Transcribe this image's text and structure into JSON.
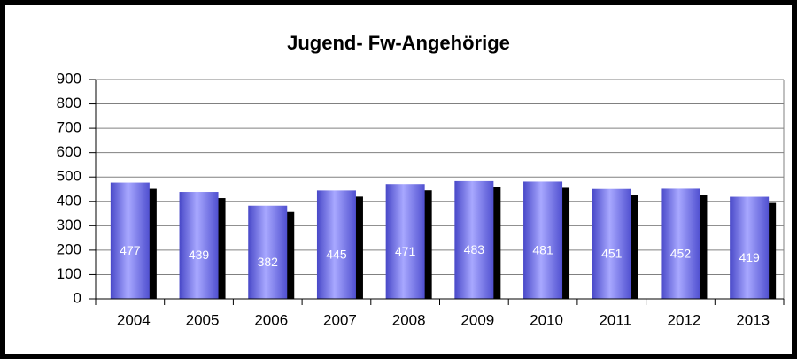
{
  "chart_data": {
    "type": "bar",
    "title": "Jugend- Fw-Angehörige",
    "categories": [
      "2004",
      "2005",
      "2006",
      "2007",
      "2008",
      "2009",
      "2010",
      "2011",
      "2012",
      "2013"
    ],
    "values": [
      477,
      439,
      382,
      445,
      471,
      483,
      481,
      451,
      452,
      419
    ],
    "color": "#7878f0",
    "ylim": [
      0,
      900
    ],
    "yticks": [
      0,
      100,
      200,
      300,
      400,
      500,
      600,
      700,
      800,
      900
    ],
    "grid": true
  }
}
